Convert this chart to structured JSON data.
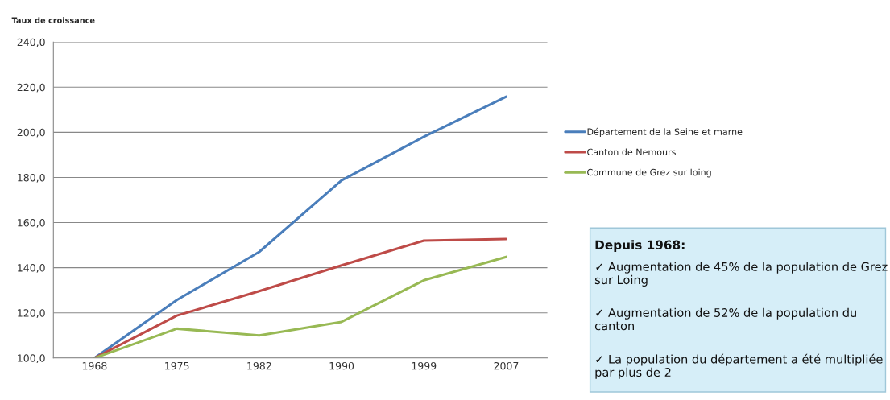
{
  "chart_data": {
    "type": "line",
    "ylabel": "Taux de croissance",
    "categories": [
      "1968",
      "1975",
      "1982",
      "1990",
      "1999",
      "2007"
    ],
    "series": [
      {
        "name": "Département de la Seine et marne",
        "color": "#4a7ebb",
        "values": [
          100,
          125.7,
          147,
          178.7,
          198,
          215.8
        ]
      },
      {
        "name": "Canton de Nemours",
        "color": "#be4b48",
        "values": [
          100,
          118.8,
          129.6,
          141,
          152,
          152.7
        ]
      },
      {
        "name": "Commune de Grez sur loing",
        "color": "#98b954",
        "values": [
          100,
          113,
          110,
          116,
          134.4,
          144.8
        ]
      }
    ],
    "ylim": [
      100,
      240
    ],
    "yticks": [
      {
        "value": 100,
        "label": "100,0"
      },
      {
        "value": 120,
        "label": "120,0"
      },
      {
        "value": 140,
        "label": "140,0"
      },
      {
        "value": 160,
        "label": "160,0"
      },
      {
        "value": 180,
        "label": "180,0"
      },
      {
        "value": 200,
        "label": "200,0"
      },
      {
        "value": 220,
        "label": "220,0"
      },
      {
        "value": 240,
        "label": "240,0"
      }
    ],
    "grid": "y",
    "legend": "right",
    "marker": "none",
    "annotations": [
      "Depuis 1968:",
      "✓ Augmentation de 45% de la population de Grez sur Loing",
      "✓ Augmentation de 52% de la population du canton",
      "✓ La population du département a été multipliée par plus de 2"
    ]
  }
}
